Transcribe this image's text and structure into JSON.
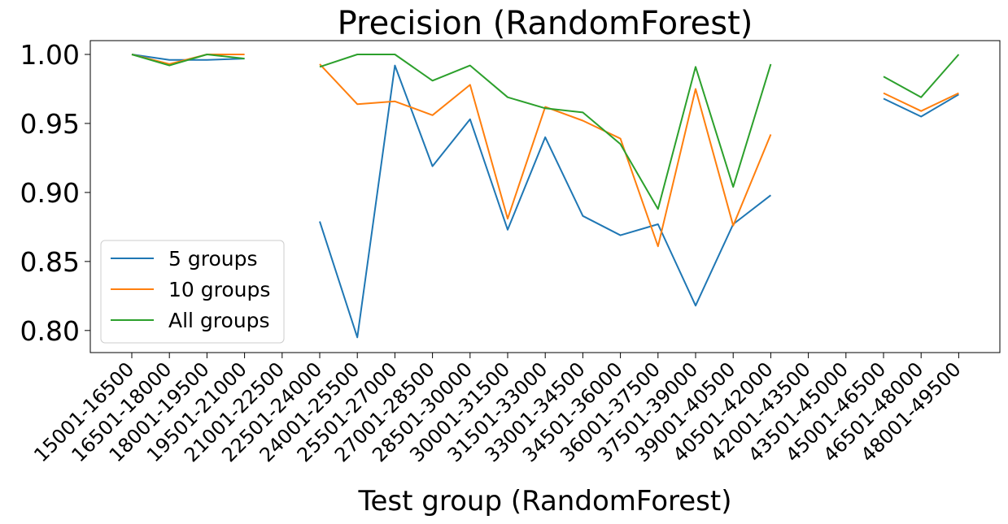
{
  "chart_data": {
    "type": "line",
    "title": "Precision (RandomForest)",
    "xlabel": "Test group (RandomForest)",
    "ylabel": "",
    "categories": [
      "15001-16500",
      "16501-18000",
      "18001-19500",
      "19501-21000",
      "21001-22500",
      "22501-24000",
      "24001-25500",
      "25501-27000",
      "27001-28500",
      "28501-30000",
      "30001-31500",
      "31501-33000",
      "33001-34500",
      "34501-36000",
      "36001-37500",
      "37501-39000",
      "39001-40500",
      "40501-42000",
      "42001-43500",
      "43501-45000",
      "45001-46500",
      "46501-48000",
      "48001-49500"
    ],
    "yticks": [
      "0.80",
      "0.85",
      "0.90",
      "0.95",
      "1.00"
    ],
    "ylim": [
      0.784,
      1.01
    ],
    "legend_position": "lower left",
    "grid": false,
    "series": [
      {
        "name": "5 groups",
        "color": "#1f77b4",
        "values": [
          1.0,
          0.996,
          0.996,
          0.997,
          null,
          0.879,
          0.795,
          0.992,
          0.919,
          0.953,
          0.873,
          0.94,
          0.883,
          0.869,
          0.877,
          0.818,
          0.877,
          0.898,
          null,
          null,
          0.968,
          0.955,
          0.971
        ]
      },
      {
        "name": "10 groups",
        "color": "#ff7f0e",
        "values": [
          1.0,
          0.993,
          1.0,
          1.0,
          null,
          0.993,
          0.964,
          0.966,
          0.956,
          0.978,
          0.881,
          0.962,
          0.952,
          0.939,
          0.861,
          0.975,
          0.876,
          0.942,
          null,
          null,
          0.972,
          0.959,
          0.972
        ]
      },
      {
        "name": "All groups",
        "color": "#2ca02c",
        "values": [
          1.0,
          0.992,
          1.0,
          0.997,
          null,
          0.991,
          1.0,
          1.0,
          0.981,
          0.992,
          0.969,
          0.961,
          0.958,
          0.935,
          0.888,
          0.991,
          0.904,
          0.993,
          null,
          null,
          0.984,
          0.969,
          1.0
        ]
      }
    ]
  }
}
